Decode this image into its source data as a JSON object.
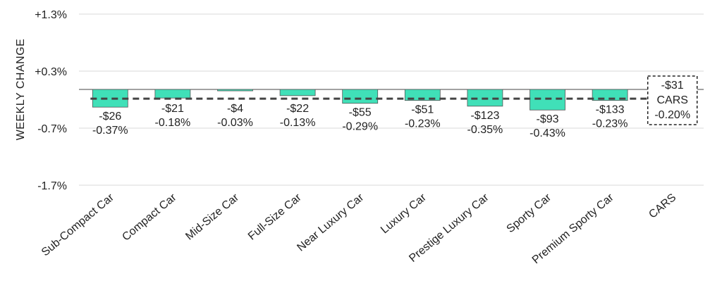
{
  "chart_data": {
    "type": "bar",
    "ylabel": "WEEKLY CHANGE",
    "ylim": [
      -1.7,
      1.3
    ],
    "y_ticks": [
      {
        "value": 1.3,
        "label": "+1.3%"
      },
      {
        "value": 0.3,
        "label": "+0.3%"
      },
      {
        "value": -0.7,
        "label": "-0.7%"
      },
      {
        "value": -1.7,
        "label": "-1.7%"
      }
    ],
    "categories": [
      "Sub-Compact Car",
      "Compact Car",
      "Mid-Size Car",
      "Full-Size Car",
      "Near Luxury Car",
      "Luxury Car",
      "Prestige Luxury Car",
      "Sporty Car",
      "Premium Sporty Car",
      "CARS"
    ],
    "values": [
      -0.37,
      -0.18,
      -0.03,
      -0.13,
      -0.29,
      -0.23,
      -0.35,
      -0.43,
      -0.23,
      -0.2
    ],
    "dollar_labels": [
      "-$26",
      "-$21",
      "-$4",
      "-$22",
      "-$55",
      "-$51",
      "-$123",
      "-$93",
      "-$133",
      "-$31"
    ],
    "percent_labels": [
      "-0.37%",
      "-0.18%",
      "-0.03%",
      "-0.13%",
      "-0.29%",
      "-0.23%",
      "-0.35%",
      "-0.43%",
      "-0.23%",
      "-0.20%"
    ],
    "average_line": {
      "value": -0.2,
      "style": "dashed"
    },
    "total": {
      "category": "CARS",
      "dollar": "-$31",
      "name": "CARS",
      "percent": "-0.20%"
    },
    "colors": {
      "bar": "#40E0B8",
      "bar_outline": "#555555",
      "grid": "#d9d9d9",
      "zero_line": "#444444",
      "avg_line": "#444444"
    }
  }
}
